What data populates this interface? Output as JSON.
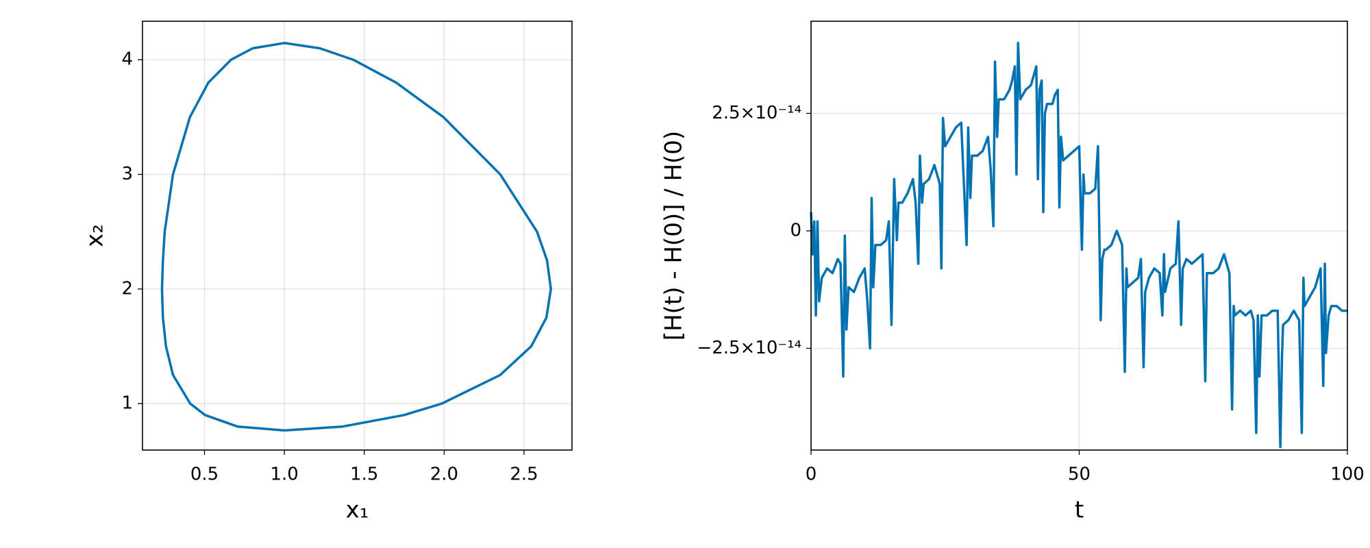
{
  "chart_data": [
    {
      "type": "line",
      "color": "#0072b2",
      "grid": true,
      "x_label": "x₁",
      "y_label": "x₂",
      "xlim": [
        0.112,
        2.8
      ],
      "ylim": [
        0.595,
        4.336
      ],
      "xticks": [
        0.5,
        {
          "value": 1,
          "label": "1.0"
        },
        1.5,
        {
          "value": 2,
          "label": "2.0"
        },
        2.5
      ],
      "yticks": [
        1,
        2,
        3,
        4
      ],
      "x": [
        1,
        1.365,
        1.748,
        1.985,
        2.351,
        2.545,
        2.64,
        2.668,
        2.644,
        2.581,
        2.351,
        1.995,
        1.7,
        1.431,
        1.222,
        1,
        0.802,
        0.666,
        0.524,
        0.409,
        0.303,
        0.251,
        0.24,
        0.234,
        0.24,
        0.259,
        0.303,
        0.411,
        0.504,
        0.707,
        1
      ],
      "values": [
        0.766,
        0.8,
        0.9,
        1.0,
        1.25,
        1.5,
        1.75,
        2.0,
        2.25,
        2.5,
        3.0,
        3.5,
        3.8,
        4.0,
        4.1,
        4.146,
        4.1,
        4.0,
        3.8,
        3.5,
        3.0,
        2.5,
        2.25,
        2.0,
        1.75,
        1.5,
        1.25,
        1.0,
        0.9,
        0.8,
        0.766
      ]
    },
    {
      "type": "line",
      "color": "#0072b2",
      "grid": true,
      "x_label": "t",
      "y_label": "[H(t) - H(0)] / H(0)",
      "xlim": [
        0,
        100
      ],
      "ylim": [
        -4.665e-14,
        4.461e-14
      ],
      "xticks": [
        0,
        50,
        100
      ],
      "yticks": [
        {
          "value": -2.5e-14,
          "label": "−2.5×10⁻¹⁴"
        },
        0,
        {
          "value": 2.5e-14,
          "label": "2.5×10⁻¹⁴"
        }
      ],
      "x": [
        0,
        0.3,
        0.6,
        0.9,
        1.2,
        1.5,
        2,
        3,
        4,
        5,
        5.5,
        6,
        6.3,
        6.6,
        7,
        8,
        9,
        10,
        10.5,
        11,
        11.3,
        11.6,
        12,
        13,
        14,
        14.5,
        15,
        15.5,
        16,
        16.3,
        17,
        18,
        19,
        19.5,
        20,
        20.3,
        20.7,
        21,
        22,
        23,
        24,
        24.3,
        24.6,
        25,
        26,
        27,
        28,
        28.5,
        29,
        29.3,
        29.7,
        30,
        31,
        32,
        33,
        33.5,
        34,
        34.3,
        34.7,
        35,
        36,
        37,
        37.5,
        38,
        38.3,
        38.6,
        39,
        40,
        41,
        42,
        42.3,
        42.6,
        43,
        43.3,
        43.6,
        44,
        45,
        45.5,
        46,
        46.3,
        46.6,
        47,
        48,
        49,
        50,
        50.5,
        50.8,
        51,
        52,
        53,
        53.5,
        54,
        54.3,
        54.7,
        55,
        56,
        57,
        58,
        58.5,
        58.8,
        59,
        60,
        61,
        61.5,
        62,
        62.3,
        63,
        64,
        65,
        65.5,
        65.8,
        66,
        67,
        68,
        68.5,
        69,
        69.3,
        70,
        71,
        72,
        73,
        73.5,
        73.8,
        75,
        76,
        77,
        78,
        78.5,
        78.8,
        79,
        80,
        81,
        82,
        82.5,
        83,
        83.3,
        83.6,
        84,
        85,
        86,
        87,
        87.5,
        87.8,
        88,
        89,
        90,
        91,
        91.5,
        91.8,
        92,
        93,
        94,
        95,
        95.5,
        95.8,
        96,
        96.5,
        97,
        98,
        99,
        100
      ],
      "values": [
        4e-15,
        -5e-15,
        2e-15,
        -1.8e-14,
        2e-15,
        -1.5e-14,
        -1e-14,
        -8e-15,
        -9e-15,
        -6e-15,
        -7e-15,
        -3.1e-14,
        -1e-15,
        -2.1e-14,
        -1.2e-14,
        -1.3e-14,
        -1e-14,
        -8e-15,
        -1.5e-14,
        -2.5e-14,
        7e-15,
        -1.2e-14,
        -3e-15,
        -3e-15,
        -2e-15,
        2e-15,
        -2e-14,
        1.1e-14,
        -2e-15,
        6e-15,
        6e-15,
        8e-15,
        1.1e-14,
        6e-15,
        -7e-15,
        1.6e-14,
        6e-15,
        1e-14,
        1.1e-14,
        1.4e-14,
        1e-14,
        -8e-15,
        2.4e-14,
        1.8e-14,
        2e-14,
        2.2e-14,
        2.3e-14,
        1e-14,
        -3e-15,
        2.2e-14,
        7e-15,
        1.6e-14,
        1.6e-14,
        1.7e-14,
        2e-14,
        1.3e-14,
        1e-15,
        3.6e-14,
        2e-14,
        2.8e-14,
        2.8e-14,
        3e-14,
        3.2e-14,
        3.5e-14,
        1.2e-14,
        4e-14,
        2.8e-14,
        3e-14,
        3.1e-14,
        3.5e-14,
        1.1e-14,
        3e-14,
        3.2e-14,
        4e-15,
        2.5e-14,
        2.7e-14,
        2.7e-14,
        2.9e-14,
        3e-14,
        5e-15,
        2e-14,
        1.5e-14,
        1.6e-14,
        1.7e-14,
        1.8e-14,
        -4e-15,
        1.2e-14,
        8e-15,
        8e-15,
        9e-15,
        1.8e-14,
        -1.9e-14,
        -6e-15,
        -4e-15,
        -4e-15,
        -3e-15,
        0,
        -3e-15,
        -3e-14,
        -8e-15,
        -1.2e-14,
        -1.1e-14,
        -1e-14,
        -6e-15,
        -2.9e-14,
        -1.3e-14,
        -1e-14,
        -8e-15,
        -9e-15,
        -1.8e-14,
        -5e-15,
        -1.3e-14,
        -8e-15,
        -7e-15,
        2e-15,
        -2e-14,
        -8e-15,
        -6e-15,
        -7e-15,
        -6e-15,
        -5e-15,
        -3.2e-14,
        -9e-15,
        -9e-15,
        -8e-15,
        -5e-15,
        -9e-15,
        -3.8e-14,
        -1.6e-14,
        -1.8e-14,
        -1.7e-14,
        -1.8e-14,
        -1.7e-14,
        -1.9e-14,
        -4.3e-14,
        -1.8e-14,
        -3.1e-14,
        -1.8e-14,
        -1.8e-14,
        -1.7e-14,
        -1.7e-14,
        -4.6e-14,
        -2.7e-14,
        -2e-14,
        -1.9e-14,
        -1.7e-14,
        -1.9e-14,
        -4.3e-14,
        -1e-14,
        -1.6e-14,
        -1.4e-14,
        -1.2e-14,
        -8e-15,
        -3.3e-14,
        -7e-15,
        -2.6e-14,
        -1.8e-14,
        -1.6e-14,
        -1.6e-14,
        -1.7e-14,
        -1.7e-14
      ]
    }
  ]
}
